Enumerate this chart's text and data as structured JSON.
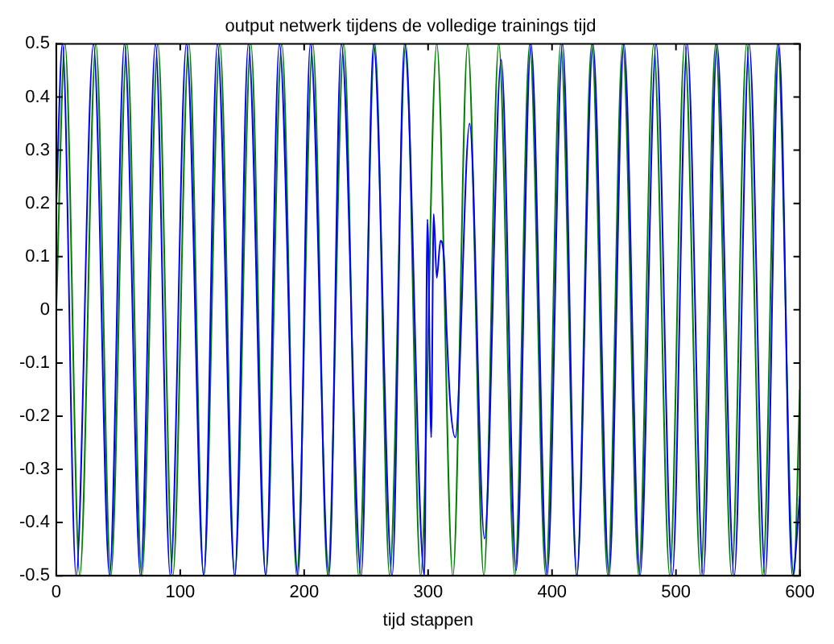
{
  "chart_data": {
    "type": "line",
    "title": "output netwerk tijdens de volledige trainings tijd",
    "xlabel": "tijd stappen",
    "xlim": [
      0,
      600
    ],
    "xticks": [
      0,
      100,
      200,
      300,
      400,
      500,
      600
    ],
    "ylim": [
      -0.5,
      0.5
    ],
    "yticks": [
      -0.5,
      -0.4,
      -0.3,
      -0.2,
      -0.1,
      0,
      0.1,
      0.2,
      0.3,
      0.4,
      0.5
    ],
    "marker": "none",
    "legend": false,
    "series": [
      {
        "color": "#0000ff",
        "x": [
          0,
          5,
          16,
          30,
          43,
          55,
          68,
          80,
          92,
          105,
          119,
          130,
          144,
          155,
          169,
          180,
          195,
          205,
          220,
          230,
          246,
          256,
          271,
          281,
          297,
          299.5,
          302.5,
          304.5,
          307,
          310,
          313,
          315,
          318,
          322,
          333.5,
          345.5,
          359,
          371,
          383,
          396,
          408.5,
          420,
          433,
          446,
          458,
          471,
          484,
          497,
          509,
          522,
          533,
          547,
          559,
          572,
          583,
          594,
          600
        ],
        "values": [
          0.2,
          0.5,
          -0.5,
          0.5,
          -0.5,
          0.5,
          -0.5,
          0.5,
          -0.5,
          0.5,
          -0.5,
          0.5,
          -0.5,
          0.5,
          -0.5,
          0.5,
          -0.5,
          0.5,
          -0.5,
          0.5,
          -0.5,
          0.5,
          -0.5,
          0.5,
          -0.5,
          0.17,
          -0.24,
          0.18,
          0.06,
          0.13,
          0.09,
          -0.04,
          -0.18,
          -0.24,
          0.35,
          -0.43,
          0.47,
          -0.49,
          0.5,
          -0.5,
          0.5,
          -0.5,
          0.5,
          -0.5,
          0.5,
          -0.5,
          0.5,
          -0.5,
          0.5,
          -0.5,
          0.5,
          -0.5,
          0.5,
          -0.5,
          0.5,
          -0.5,
          -0.35
        ]
      },
      {
        "color": "#008000",
        "x": [
          0,
          7,
          19,
          32,
          44,
          57,
          69,
          82,
          94,
          107,
          119,
          132,
          144,
          157,
          169,
          182,
          194,
          207,
          219,
          232,
          244,
          257,
          269,
          282,
          294,
          307,
          320,
          332,
          345,
          357,
          370,
          382,
          395,
          407,
          420,
          432,
          445,
          457,
          470,
          482,
          495,
          507,
          520,
          532,
          545,
          557,
          570,
          582,
          595,
          600
        ],
        "values": [
          0,
          0.5,
          -0.5,
          0.5,
          -0.5,
          0.5,
          -0.5,
          0.5,
          -0.5,
          0.5,
          -0.5,
          0.5,
          -0.5,
          0.5,
          -0.5,
          0.5,
          -0.5,
          0.5,
          -0.5,
          0.5,
          -0.5,
          0.5,
          -0.5,
          0.5,
          -0.5,
          0.5,
          -0.5,
          0.5,
          -0.5,
          0.5,
          -0.5,
          0.5,
          -0.5,
          0.5,
          -0.5,
          0.5,
          -0.5,
          0.5,
          -0.5,
          0.5,
          -0.5,
          0.5,
          -0.5,
          0.5,
          -0.5,
          0.5,
          -0.5,
          0.5,
          -0.5,
          -0.15
        ]
      }
    ]
  }
}
